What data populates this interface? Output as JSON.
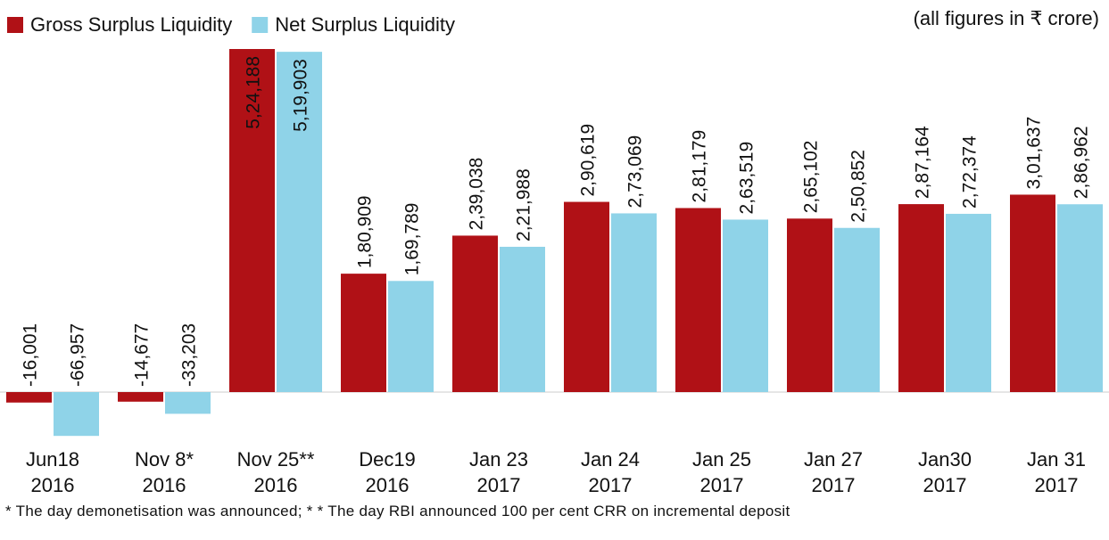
{
  "chart_data": {
    "type": "bar",
    "note": "(all figures in ₹ crore)",
    "footnote": "* The day demonetisation was announced; * * The day RBI announced 100 per cent CRR on incremental deposit",
    "categories": [
      [
        "Jun18",
        "2016"
      ],
      [
        "Nov 8*",
        "2016"
      ],
      [
        "Nov 25**",
        "2016"
      ],
      [
        "Dec19",
        "2016"
      ],
      [
        "Jan 23",
        "2017"
      ],
      [
        "Jan 24",
        "2017"
      ],
      [
        "Jan 25",
        "2017"
      ],
      [
        "Jan 27",
        "2017"
      ],
      [
        "Jan30",
        "2017"
      ],
      [
        "Jan 31",
        "2017"
      ]
    ],
    "series": [
      {
        "name": "Gross Surplus Liquidity",
        "color": "#b01116",
        "values": [
          -16001,
          -14677,
          524188,
          180909,
          239038,
          290619,
          281179,
          265102,
          287164,
          301637
        ],
        "value_labels": [
          "-16,001",
          "-14,677",
          "5,24,188",
          "1,80,909",
          "2,39,038",
          "2,90,619",
          "2,81,179",
          "2,65,102",
          "2,87,164",
          "3,01,637"
        ]
      },
      {
        "name": "Net Surplus Liquidity",
        "color": "#8fd3e8",
        "values": [
          -66957,
          -33203,
          519903,
          169789,
          221988,
          273069,
          263519,
          250852,
          272374,
          286962
        ],
        "value_labels": [
          "-66,957",
          "-33,203",
          "5,19,903",
          "1,69,789",
          "2,21,988",
          "2,73,069",
          "2,63,519",
          "2,50,852",
          "2,72,374",
          "2,86,962"
        ]
      }
    ]
  }
}
